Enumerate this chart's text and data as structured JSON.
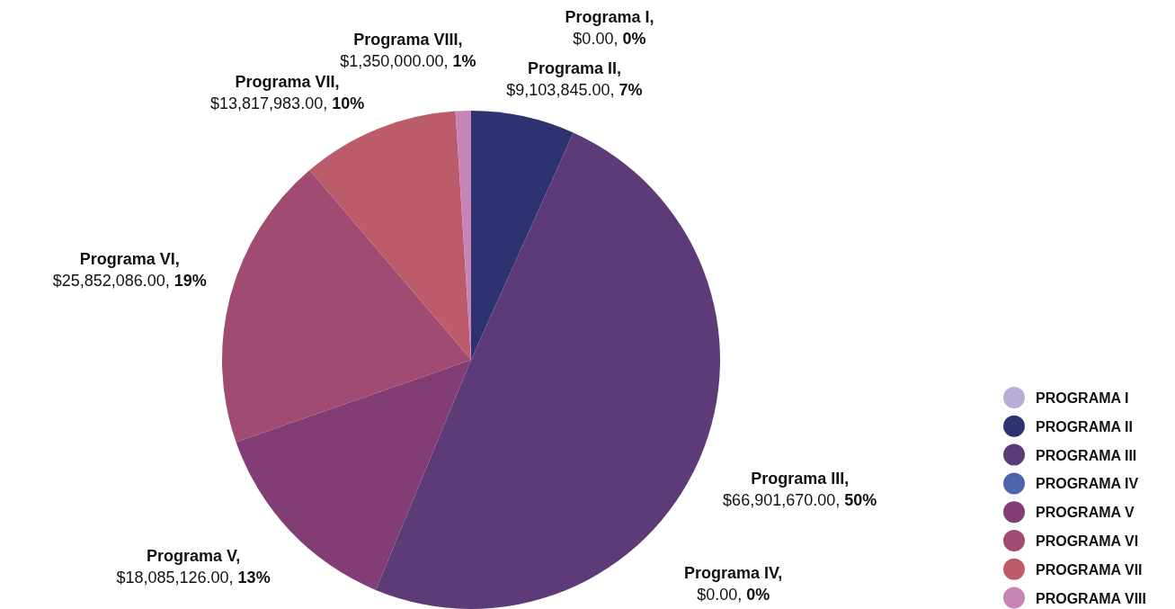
{
  "chart_data": {
    "type": "pie",
    "categories": [
      "PROGRAMA I",
      "PROGRAMA II",
      "PROGRAMA III",
      "PROGRAMA IV",
      "PROGRAMA V",
      "PROGRAMA VI",
      "PROGRAMA VII",
      "PROGRAMA VIII"
    ],
    "values": [
      0,
      9103845,
      66901670,
      0,
      18085126,
      25852086,
      13817983,
      1350000
    ],
    "value_labels": [
      "Programa I, $0.00, 0%",
      "Programa II, $9,103,845.00, 7%",
      "Programa III, $66,901,670.00, 50%",
      "Programa IV, $0.00, 0%",
      "Programa V, $18,085,126.00, 13%",
      "Programa VI, $25,852,086.00, 19%",
      "Programa VII, $13,817,983.00, 10%",
      "Programa VIII, $1,350,000.00, 1%"
    ],
    "colors": [
      "#b8acd6",
      "#2e3270",
      "#5d3a78",
      "#4f63ad",
      "#823d75",
      "#a24b72",
      "#bc5b6a",
      "#c684b8"
    ],
    "legend": "right"
  }
}
